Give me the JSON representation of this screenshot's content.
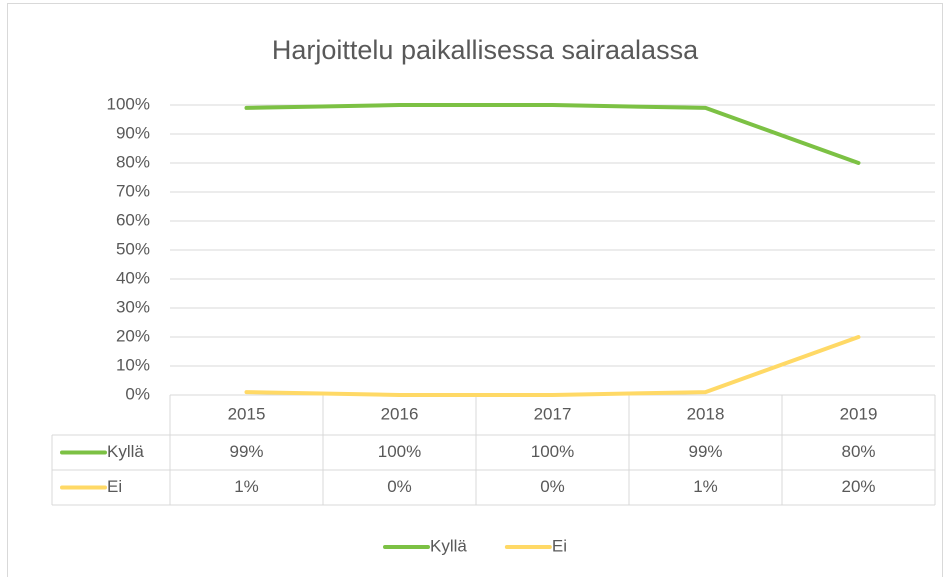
{
  "chart_data": {
    "type": "line",
    "title": "Harjoittelu paikallisessa sairaalassa",
    "categories": [
      "2015",
      "2016",
      "2017",
      "2018",
      "2019"
    ],
    "series": [
      {
        "name": "Kyllä",
        "color": "#7cc144",
        "values": [
          99,
          100,
          100,
          99,
          80
        ],
        "value_labels": [
          "99%",
          "100%",
          "100%",
          "99%",
          "80%"
        ]
      },
      {
        "name": "Ei",
        "color": "#ffd966",
        "values": [
          1,
          0,
          0,
          1,
          20
        ],
        "value_labels": [
          "1%",
          "0%",
          "0%",
          "1%",
          "20%"
        ]
      }
    ],
    "ylim": [
      0,
      100
    ],
    "yticks": [
      {
        "value": 0,
        "label": "0%"
      },
      {
        "value": 10,
        "label": "10%"
      },
      {
        "value": 20,
        "label": "20%"
      },
      {
        "value": 30,
        "label": "30%"
      },
      {
        "value": 40,
        "label": "40%"
      },
      {
        "value": 50,
        "label": "50%"
      },
      {
        "value": 60,
        "label": "60%"
      },
      {
        "value": 70,
        "label": "70%"
      },
      {
        "value": 80,
        "label": "80%"
      },
      {
        "value": 90,
        "label": "90%"
      },
      {
        "value": 100,
        "label": "100%"
      }
    ],
    "grid": true,
    "legend": "bottom",
    "data_table": true
  }
}
